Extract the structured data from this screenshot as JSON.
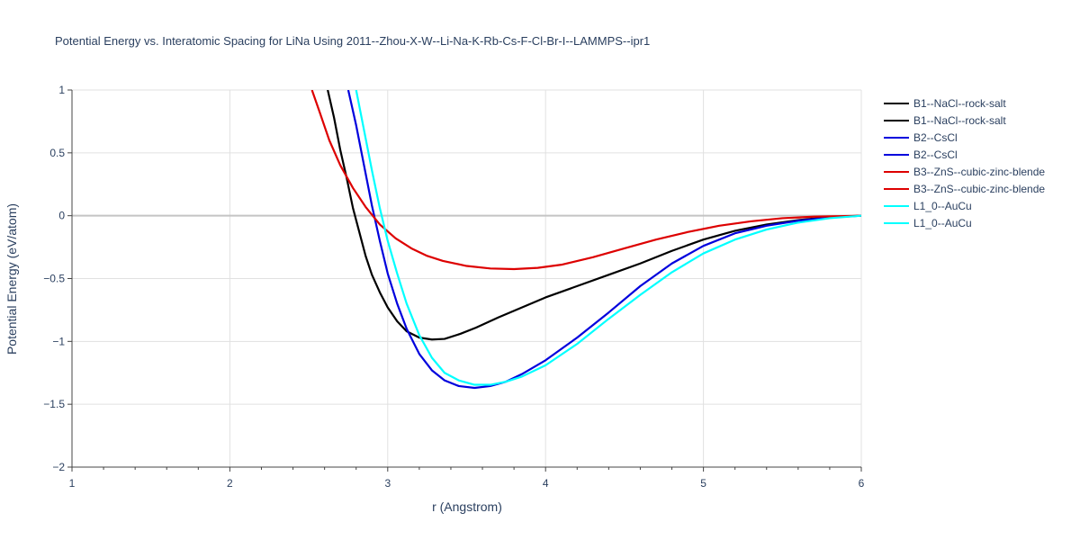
{
  "chart_data": {
    "type": "line",
    "title": "Potential Energy vs. Interatomic Spacing for LiNa Using 2011--Zhou-X-W--Li-Na-K-Rb-Cs-F-Cl-Br-I--LAMMPS--ipr1",
    "xlabel": "r (Angstrom)",
    "ylabel": "Potential Energy (eV/atom)",
    "xlim": [
      1,
      6
    ],
    "ylim": [
      -2,
      1
    ],
    "xticks": [
      1,
      2,
      3,
      4,
      5,
      6
    ],
    "xtick_labels": [
      "1",
      "2",
      "3",
      "4",
      "5",
      "6"
    ],
    "yticks": [
      -2,
      -1.5,
      -1,
      -0.5,
      0,
      0.5,
      1
    ],
    "ytick_labels": [
      "−2",
      "−1.5",
      "−1",
      "−0.5",
      "0",
      "0.5",
      "1"
    ],
    "grid": true,
    "legend_position": "top-right",
    "series": [
      {
        "name": "B1--NaCl--rock-salt",
        "color": "#000000",
        "x": [
          2.62,
          2.66,
          2.7,
          2.74,
          2.78,
          2.82,
          2.86,
          2.9,
          2.95,
          3.0,
          3.06,
          3.12,
          3.2,
          3.28,
          3.36,
          3.46,
          3.56,
          3.7,
          3.85,
          4.0,
          4.2,
          4.4,
          4.6,
          4.8,
          5.0,
          5.2,
          5.4,
          5.6,
          5.8,
          6.0
        ],
        "y": [
          1.0,
          0.78,
          0.52,
          0.3,
          0.06,
          -0.13,
          -0.32,
          -0.47,
          -0.61,
          -0.73,
          -0.84,
          -0.92,
          -0.97,
          -0.985,
          -0.98,
          -0.94,
          -0.89,
          -0.81,
          -0.73,
          -0.65,
          -0.56,
          -0.47,
          -0.38,
          -0.28,
          -0.19,
          -0.12,
          -0.07,
          -0.035,
          -0.01,
          0.0
        ]
      },
      {
        "name": "B1--NaCl--rock-salt",
        "color": "#000000",
        "x": [],
        "y": []
      },
      {
        "name": "B2--CsCl",
        "color": "#0000dd",
        "x": [
          2.75,
          2.8,
          2.85,
          2.9,
          2.95,
          3.0,
          3.06,
          3.12,
          3.2,
          3.28,
          3.36,
          3.45,
          3.55,
          3.65,
          3.75,
          3.85,
          4.0,
          4.2,
          4.4,
          4.6,
          4.8,
          5.0,
          5.2,
          5.4,
          5.6,
          5.8,
          6.0
        ],
        "y": [
          1.0,
          0.72,
          0.4,
          0.08,
          -0.2,
          -0.46,
          -0.7,
          -0.9,
          -1.1,
          -1.23,
          -1.31,
          -1.355,
          -1.37,
          -1.355,
          -1.32,
          -1.26,
          -1.15,
          -0.97,
          -0.77,
          -0.56,
          -0.38,
          -0.24,
          -0.14,
          -0.08,
          -0.04,
          -0.015,
          0.0
        ]
      },
      {
        "name": "B2--CsCl",
        "color": "#0000dd",
        "x": [],
        "y": []
      },
      {
        "name": "B3--ZnS--cubic-zinc-blende",
        "color": "#dd0000",
        "x": [
          2.52,
          2.57,
          2.63,
          2.7,
          2.78,
          2.86,
          2.95,
          3.05,
          3.15,
          3.25,
          3.35,
          3.5,
          3.65,
          3.8,
          3.95,
          4.1,
          4.3,
          4.5,
          4.7,
          4.9,
          5.1,
          5.3,
          5.5,
          5.7,
          6.0
        ],
        "y": [
          1.0,
          0.82,
          0.6,
          0.4,
          0.22,
          0.07,
          -0.07,
          -0.18,
          -0.26,
          -0.32,
          -0.36,
          -0.4,
          -0.42,
          -0.425,
          -0.415,
          -0.39,
          -0.33,
          -0.26,
          -0.19,
          -0.13,
          -0.08,
          -0.045,
          -0.02,
          -0.008,
          0.0
        ]
      },
      {
        "name": "B3--ZnS--cubic-zinc-blende",
        "color": "#dd0000",
        "x": [],
        "y": []
      },
      {
        "name": "L1_0--AuCu",
        "color": "#00ffff",
        "x": [
          2.8,
          2.85,
          2.9,
          2.95,
          3.0,
          3.06,
          3.12,
          3.2,
          3.28,
          3.36,
          3.45,
          3.55,
          3.65,
          3.75,
          3.85,
          4.0,
          4.2,
          4.4,
          4.6,
          4.8,
          5.0,
          5.2,
          5.4,
          5.6,
          5.8,
          6.0
        ],
        "y": [
          1.0,
          0.68,
          0.36,
          0.06,
          -0.2,
          -0.46,
          -0.7,
          -0.95,
          -1.13,
          -1.25,
          -1.31,
          -1.345,
          -1.345,
          -1.32,
          -1.28,
          -1.19,
          -1.02,
          -0.82,
          -0.63,
          -0.45,
          -0.3,
          -0.19,
          -0.11,
          -0.055,
          -0.02,
          0.0
        ]
      },
      {
        "name": "L1_0--AuCu",
        "color": "#00ffff",
        "x": [],
        "y": []
      }
    ]
  }
}
